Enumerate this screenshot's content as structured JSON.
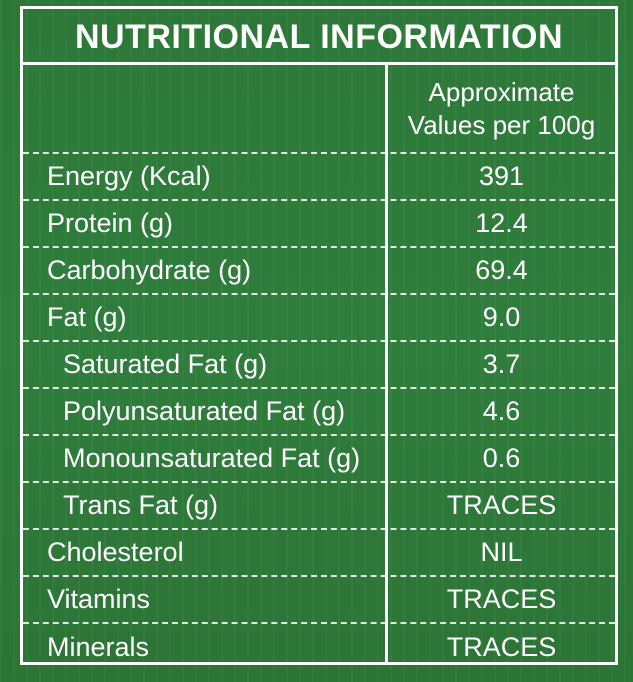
{
  "title": "NUTRITIONAL INFORMATION",
  "header": {
    "line1": "Approximate",
    "line2": "Values per 100g"
  },
  "rows": [
    {
      "label": "Energy (Kcal)",
      "value": "391"
    },
    {
      "label": "Protein (g)",
      "value": "12.4"
    },
    {
      "label": "Carbohydrate (g)",
      "value": "69.4"
    },
    {
      "label": "Fat (g)",
      "value": "9.0"
    },
    {
      "label": "Saturated Fat (g)",
      "value": "3.7"
    },
    {
      "label": "Polyunsaturated Fat (g)",
      "value": "4.6"
    },
    {
      "label": "Monounsaturated Fat (g)",
      "value": "0.6"
    },
    {
      "label": "Trans Fat (g)",
      "value": "TRACES"
    },
    {
      "label": "Cholesterol",
      "value": "NIL"
    },
    {
      "label": "Vitamins",
      "value": "TRACES"
    },
    {
      "label": "Minerals",
      "value": "TRACES"
    }
  ],
  "colors": {
    "background": "#2f7a3b",
    "text": "#ffffff"
  }
}
